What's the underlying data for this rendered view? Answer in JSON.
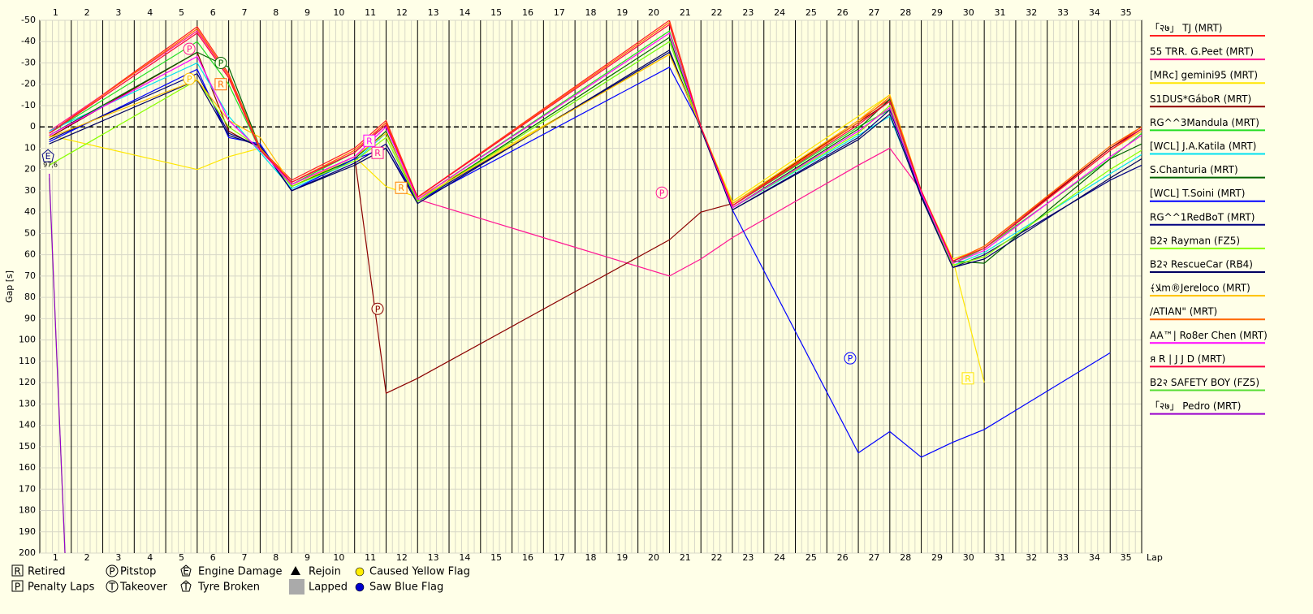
{
  "chart_data": {
    "type": "line",
    "y_label": "Gap [s]",
    "x_label": "Lap",
    "xlim": [
      0.5,
      35.5
    ],
    "xticks": [
      1,
      2,
      3,
      4,
      5,
      6,
      7,
      8,
      9,
      10,
      11,
      12,
      13,
      14,
      15,
      16,
      17,
      18,
      19,
      20,
      21,
      22,
      23,
      24,
      25,
      26,
      27,
      28,
      29,
      30,
      31,
      32,
      33,
      34,
      35
    ],
    "ylim": [
      -50,
      200
    ],
    "yticks": [
      -50,
      -40,
      -30,
      -20,
      -10,
      0,
      10,
      20,
      30,
      40,
      50,
      60,
      70,
      80,
      90,
      100,
      110,
      120,
      130,
      140,
      150,
      160,
      170,
      180,
      190,
      200
    ],
    "grid": true,
    "x": [
      0.8,
      5.5,
      6.5,
      7.5,
      8.5,
      10.5,
      11.5,
      12.5,
      20.5,
      21.5,
      22.5,
      26.5,
      27.5,
      28.5,
      29.5,
      30.5,
      34.5,
      35.5
    ],
    "series": [
      {
        "name": "「२७」 TJ (MRT)",
        "color": "#ff2020",
        "values": [
          3,
          -47,
          -25,
          10,
          25,
          10,
          -3,
          33,
          -50,
          0,
          37,
          -3,
          -13,
          30,
          63,
          56,
          10,
          0
        ]
      },
      {
        "name": "55 TRR. G.Peet (MRT)",
        "color": "#ff1493",
        "values": [
          2,
          -45,
          -24,
          11,
          26,
          12,
          -2,
          34,
          70,
          62,
          52,
          18,
          10,
          30,
          64,
          57,
          11,
          2
        ]
      },
      {
        "name": "[MRc] gemini95 (MRT)",
        "color": "#ffe600",
        "values": [
          4,
          20,
          14,
          10,
          28,
          14,
          28,
          33,
          -34,
          0,
          35,
          -5,
          -15,
          30,
          62,
          120,
          null,
          null
        ]
      },
      {
        "name": "S1DUS*GáboR (MRT)",
        "color": "#8b0000",
        "values": [
          5,
          -35,
          2,
          10,
          27,
          14,
          125,
          118,
          53,
          40,
          36,
          -2,
          -12,
          30,
          63,
          57,
          10,
          1
        ]
      },
      {
        "name": "RG^^3Mandula (MRT)",
        "color": "#22dd22",
        "values": [
          3,
          -40,
          -20,
          11,
          27,
          12,
          -1,
          34,
          -45,
          0,
          37,
          0,
          -8,
          30,
          64,
          57,
          15,
          3
        ]
      },
      {
        "name": "[WCL] J.A.Katila (MRT)",
        "color": "#00e0f0",
        "values": [
          2,
          -30,
          -5,
          12,
          29,
          16,
          3,
          35,
          -40,
          1,
          38,
          4,
          -5,
          32,
          65,
          59,
          22,
          13
        ]
      },
      {
        "name": "S.Chanturia (MRT)",
        "color": "#006400",
        "values": [
          4,
          -35,
          -28,
          10,
          28,
          15,
          2,
          35,
          -42,
          1,
          38,
          1,
          -13,
          31,
          63,
          64,
          15,
          8
        ]
      },
      {
        "name": "[WCL] T.Soini (MRT)",
        "color": "#0000ff",
        "values": [
          7,
          -27,
          5,
          8,
          30,
          15,
          10,
          35,
          -28,
          0,
          39,
          153,
          143,
          155,
          148,
          142,
          106,
          null
        ]
      },
      {
        "name": "RG^^1RedBoT (MRT)",
        "color": "#000080",
        "values": [
          6,
          -25,
          3,
          9,
          30,
          17,
          8,
          35,
          -35,
          1,
          39,
          5,
          -8,
          32,
          66,
          60,
          25,
          18
        ]
      },
      {
        "name": "B2२ Rayman (FZ5)",
        "color": "#88ff00",
        "values": [
          18,
          -22,
          0,
          10,
          28,
          16,
          5,
          35,
          -40,
          1,
          38,
          3,
          -10,
          31,
          65,
          61,
          20,
          11
        ]
      },
      {
        "name": "B2२ RescueCar (RB4)",
        "color": "#000060",
        "values": [
          8,
          -22,
          4,
          9,
          30,
          18,
          10,
          36,
          -36,
          1,
          39,
          6,
          -6,
          33,
          66,
          62,
          24,
          15
        ]
      },
      {
        "name": "﴾ﻼm®Jereloco (MRT)",
        "color": "#ffc000",
        "values": [
          5,
          -22,
          -3,
          5,
          27,
          14,
          3,
          34,
          -34,
          0,
          36,
          -3,
          -15,
          30,
          62,
          57,
          11,
          2
        ]
      },
      {
        "name": "/ATIAN\" (MRT)",
        "color": "#ff6600",
        "values": [
          3,
          -46,
          -24,
          10,
          26,
          11,
          -2,
          33,
          -49,
          0,
          37,
          -2,
          -14,
          30,
          63,
          56,
          9,
          0
        ]
      },
      {
        "name": "AA™| Ro8er Chen (MRT)",
        "color": "#ff00ff",
        "values": [
          4,
          -33,
          -3,
          11,
          27,
          14,
          0,
          34,
          -44,
          0,
          38,
          2,
          -9,
          31,
          64,
          58,
          14,
          4
        ]
      },
      {
        "name": "я R | J J D (MRT)",
        "color": "#ff0040",
        "values": [
          3,
          -44,
          -23,
          11,
          26,
          12,
          -1,
          33,
          -48,
          0,
          37,
          -1,
          -12,
          30,
          63,
          57,
          11,
          1
        ]
      },
      {
        "name": "B2२ SAFETY BOY (FZ5)",
        "color": "#55dd33",
        "x": [
          0.8,
          1.3
        ],
        "values": [
          24,
          200
        ]
      },
      {
        "name": "「२७」 Pedro (MRT)",
        "color": "#9900cc",
        "x": [
          0.8,
          1.3
        ],
        "values": [
          22,
          200
        ]
      }
    ],
    "annotations": [
      {
        "text": "P",
        "x": 5.25,
        "y": -36.6,
        "color": "#ff1493"
      },
      {
        "text": "P",
        "x": 6.25,
        "y": -30,
        "color": "#006400"
      },
      {
        "text": "P",
        "x": 5.25,
        "y": -22.5,
        "color": "#ffc000"
      },
      {
        "text": "R",
        "x": 6.25,
        "y": -20,
        "color": "#ff6600"
      },
      {
        "text": "R",
        "x": 10.97,
        "y": 6.5,
        "color": "#ff00ff"
      },
      {
        "text": "R",
        "x": 11.23,
        "y": 12.2,
        "color": "#ff1493"
      },
      {
        "text": "R",
        "x": 11.98,
        "y": 28.6,
        "color": "#ff8000"
      },
      {
        "text": "P",
        "x": 11.23,
        "y": 85.4,
        "color": "#8b0000"
      },
      {
        "text": "P",
        "x": 20.26,
        "y": 30.9,
        "color": "#ff1493"
      },
      {
        "text": "P",
        "x": 26.24,
        "y": 108.6,
        "color": "#0000ff"
      },
      {
        "text": "R",
        "x": 29.98,
        "y": 118,
        "color": "#ffe600"
      },
      {
        "text": "E",
        "x": 0.76,
        "y": 13.7,
        "color": "#000080",
        "note": "97,6"
      }
    ],
    "key": [
      {
        "symbol": "R",
        "label": "Retired"
      },
      {
        "symbol": "P",
        "label": "Penalty Laps"
      },
      {
        "symbol": "P",
        "label": "Pitstop"
      },
      {
        "symbol": "T",
        "label": "Takeover"
      },
      {
        "symbol": "E",
        "label": "Engine Damage"
      },
      {
        "symbol": "T",
        "label": "Tyre Broken"
      },
      {
        "label": "Rejoin"
      },
      {
        "label": "Lapped"
      },
      {
        "label": "Caused Yellow Flag"
      },
      {
        "label": "Saw Blue Flag"
      }
    ]
  }
}
